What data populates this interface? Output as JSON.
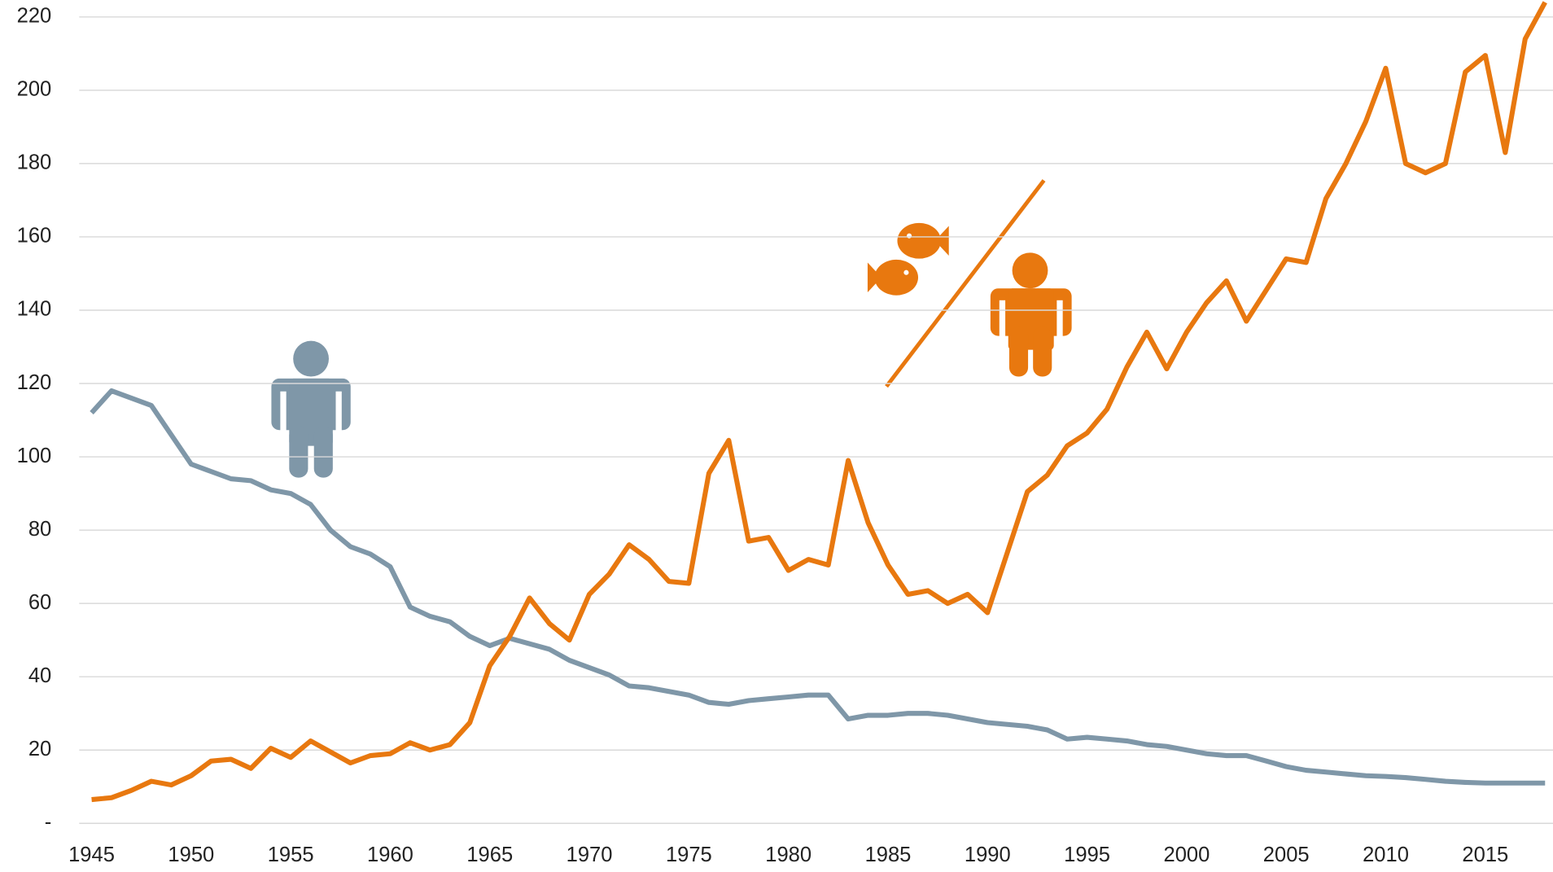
{
  "chart_data": {
    "type": "line",
    "x": [
      1945,
      1946,
      1947,
      1948,
      1949,
      1950,
      1951,
      1952,
      1953,
      1954,
      1955,
      1956,
      1957,
      1958,
      1959,
      1960,
      1961,
      1962,
      1963,
      1964,
      1965,
      1966,
      1967,
      1968,
      1969,
      1970,
      1971,
      1972,
      1973,
      1974,
      1975,
      1976,
      1977,
      1978,
      1979,
      1980,
      1981,
      1982,
      1983,
      1984,
      1985,
      1986,
      1987,
      1988,
      1989,
      1990,
      1991,
      1992,
      1993,
      1994,
      1995,
      1996,
      1997,
      1998,
      1999,
      2000,
      2001,
      2002,
      2003,
      2004,
      2005,
      2006,
      2007,
      2008,
      2009,
      2010,
      2011,
      2012,
      2013,
      2014,
      2015,
      2016,
      2017,
      2018
    ],
    "series": [
      {
        "color": "#7f97a8",
        "values": [
          112,
          118,
          116,
          114,
          106,
          98,
          96,
          94,
          93.5,
          91,
          90,
          87,
          80,
          75.5,
          73.5,
          70,
          59,
          56.5,
          55,
          51,
          48.5,
          50.5,
          49,
          47.5,
          44.5,
          42.5,
          40.5,
          37.5,
          37,
          36,
          35,
          33,
          32.5,
          33.5,
          34,
          34.5,
          35,
          35,
          28.5,
          29.5,
          29.5,
          30,
          30,
          29.5,
          28.5,
          27.5,
          27,
          26.5,
          25.5,
          23,
          23.5,
          23,
          22.5,
          21.5,
          21,
          20,
          19,
          18.5,
          18.5,
          17,
          15.5,
          14.5,
          14,
          13.5,
          13,
          12.8,
          12.5,
          12,
          11.5,
          11.2,
          11,
          11,
          11,
          11
        ]
      },
      {
        "color": "#e8780f",
        "values": [
          6.5,
          7,
          9,
          11.5,
          10.5,
          13,
          17,
          17.5,
          15,
          20.5,
          18,
          22.5,
          19.5,
          16.5,
          18.5,
          19,
          22,
          20,
          21.5,
          27.5,
          43,
          51,
          61.5,
          54.5,
          50,
          62.5,
          68,
          76,
          72,
          66,
          65.5,
          95.5,
          104.5,
          77,
          78,
          69,
          72,
          70.5,
          99,
          82,
          70.5,
          62.5,
          63.5,
          60,
          62.5,
          57.5,
          74,
          90.5,
          95,
          103,
          106.5,
          113,
          124.5,
          134,
          124,
          134,
          142,
          148,
          137,
          145.5,
          154,
          153,
          170.5,
          180,
          191.5,
          206,
          180,
          177.5,
          180,
          205,
          209.5,
          183,
          214,
          224
        ]
      }
    ],
    "xlim": [
      1940.4,
      2018.4
    ],
    "xticks": [
      1945,
      1950,
      1955,
      1960,
      1965,
      1970,
      1975,
      1980,
      1985,
      1990,
      1995,
      2000,
      2005,
      2010,
      2015
    ],
    "ylim": [
      0,
      224.6
    ],
    "yticks": [
      {
        "value": 0,
        "label": "-"
      },
      20,
      40,
      60,
      80,
      100,
      120,
      140,
      160,
      180,
      200,
      220
    ],
    "grid": true
  }
}
